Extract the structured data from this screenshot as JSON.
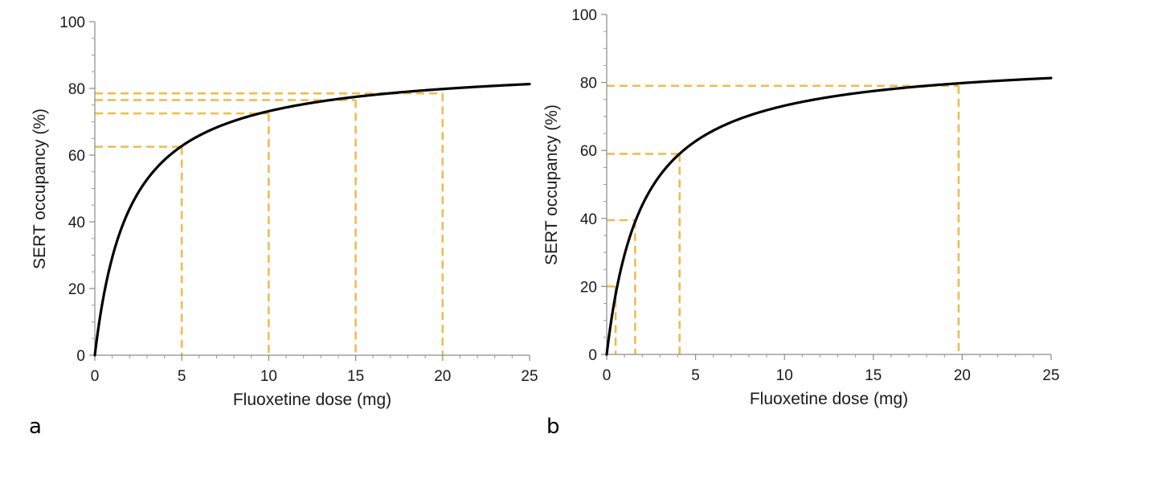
{
  "figure": {
    "panel_labels": [
      "a",
      "b"
    ]
  },
  "chart_data": [
    {
      "type": "line",
      "panel": "a",
      "title": "",
      "xlabel": "Fluoxetine dose (mg)",
      "ylabel": "SERT occupancy (%)",
      "xlim": [
        0,
        25
      ],
      "ylim": [
        0,
        100
      ],
      "xticks": [
        "0",
        "5",
        "10",
        "15",
        "20",
        "25"
      ],
      "yticks": [
        "0",
        "20",
        "40",
        "60",
        "80",
        "100"
      ],
      "grid": false,
      "legend": "none",
      "series": [
        {
          "style": "solid",
          "color": "#000000",
          "model": "Emax hyperbola: occupancy = Emax * dose / (ED50 + dose)",
          "emax": 87.8,
          "ed50": 2.0,
          "x": [
            0,
            0.5,
            1,
            2,
            3,
            4,
            5,
            6,
            8,
            10,
            12,
            15,
            18,
            20,
            22,
            25
          ],
          "values": [
            0,
            17.6,
            29.3,
            43.9,
            52.7,
            58.5,
            62.7,
            65.9,
            70.2,
            73.2,
            75.3,
            77.5,
            79.0,
            79.8,
            80.5,
            81.3
          ]
        }
      ],
      "reference_points": [
        {
          "x": 5,
          "y": 62.5,
          "color": "#eebc4f",
          "style": "dashed"
        },
        {
          "x": 10,
          "y": 72.5,
          "color": "#eebc4f",
          "style": "dashed"
        },
        {
          "x": 15,
          "y": 76.5,
          "color": "#eebc4f",
          "style": "dashed"
        },
        {
          "x": 20,
          "y": 78.5,
          "color": "#eebc4f",
          "style": "dashed"
        }
      ]
    },
    {
      "type": "line",
      "panel": "b",
      "title": "",
      "xlabel": "Fluoxetine dose (mg)",
      "ylabel": "SERT occupancy (%)",
      "xlim": [
        0,
        25
      ],
      "ylim": [
        0,
        100
      ],
      "xticks": [
        "0",
        "5",
        "10",
        "15",
        "20",
        "25"
      ],
      "yticks": [
        "0",
        "20",
        "40",
        "60",
        "80",
        "100"
      ],
      "grid": false,
      "legend": "none",
      "series": [
        {
          "style": "solid",
          "color": "#000000",
          "model": "Emax hyperbola: occupancy = Emax * dose / (ED50 + dose)",
          "emax": 87.8,
          "ed50": 2.0,
          "x": [
            0,
            0.5,
            1,
            2,
            3,
            4,
            5,
            6,
            8,
            10,
            12,
            15,
            18,
            20,
            22,
            25
          ],
          "values": [
            0,
            17.6,
            29.3,
            43.9,
            52.7,
            58.5,
            62.7,
            65.9,
            70.2,
            73.2,
            75.3,
            77.5,
            79.0,
            79.8,
            80.5,
            81.3
          ]
        }
      ],
      "reference_points": [
        {
          "x": 0.5,
          "y": 20,
          "color": "#eebc4f",
          "style": "dashed"
        },
        {
          "x": 1.6,
          "y": 39.5,
          "color": "#eebc4f",
          "style": "dashed"
        },
        {
          "x": 4.1,
          "y": 59,
          "color": "#eebc4f",
          "style": "dashed"
        },
        {
          "x": 19.8,
          "y": 79,
          "color": "#eebc4f",
          "style": "dashed"
        }
      ]
    }
  ]
}
